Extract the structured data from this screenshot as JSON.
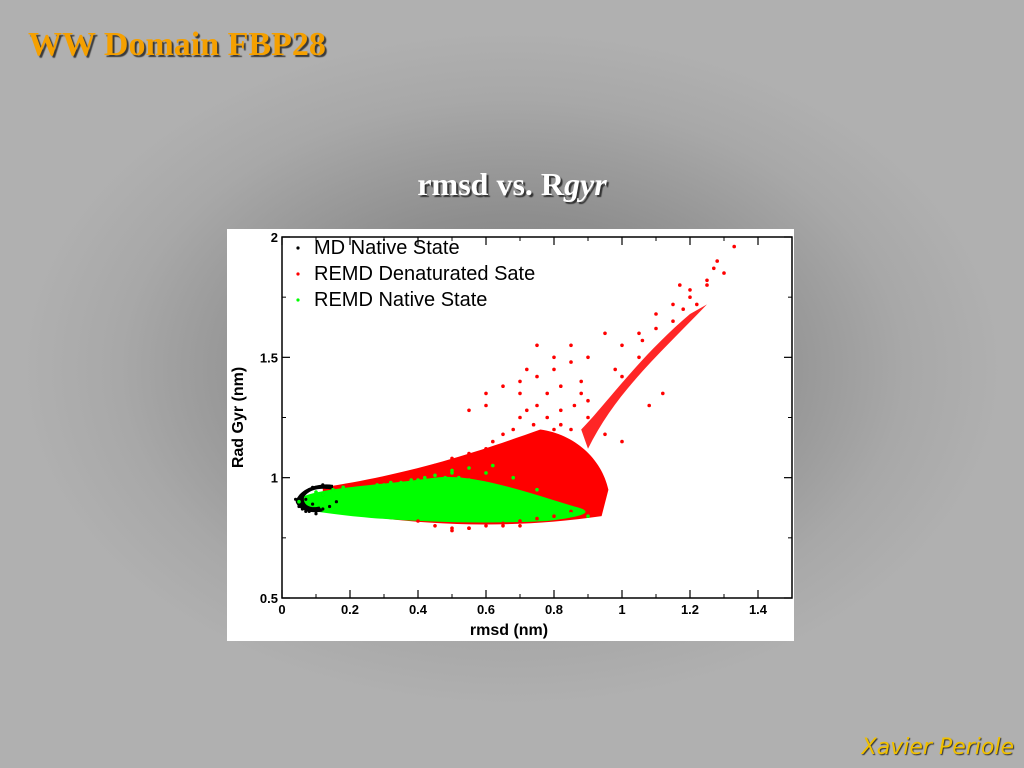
{
  "slide": {
    "title": "WW Domain FBP28",
    "heading_prefix": "rmsd vs. R",
    "heading_italic": "gyr",
    "author": "Xavier Periole"
  },
  "colors": {
    "title": "#f5a000",
    "author": "#f0c000",
    "md_native": "#000000",
    "remd_denatured": "#ff0000",
    "remd_native": "#00ff00"
  },
  "chart_data": {
    "type": "scatter",
    "title": "",
    "xlabel": "rmsd (nm)",
    "ylabel": "Rad Gyr (nm)",
    "xlim": [
      0,
      1.5
    ],
    "ylim": [
      0.5,
      2
    ],
    "xticks": [
      0,
      0.2,
      0.4,
      0.6,
      0.8,
      1,
      1.2,
      1.4
    ],
    "xtick_labels": [
      "0",
      "0.2",
      "0.4",
      "0.6",
      "0.8",
      "1",
      "1.2",
      "1.4"
    ],
    "yticks": [
      0.5,
      1,
      1.5,
      2
    ],
    "ytick_labels": [
      "0.5",
      "1",
      "1.5",
      "2"
    ],
    "grid": false,
    "legend_position": "top-left",
    "series": [
      {
        "name": "MD Native State",
        "color": "#000000",
        "x": [
          0.06,
          0.07,
          0.08,
          0.09,
          0.1,
          0.11,
          0.12,
          0.13,
          0.14,
          0.15,
          0.06,
          0.07,
          0.08,
          0.1,
          0.12,
          0.05,
          0.05,
          0.04,
          0.1,
          0.14,
          0.16,
          0.12,
          0.09,
          0.07
        ],
        "y": [
          0.92,
          0.94,
          0.95,
          0.96,
          0.96,
          0.96,
          0.97,
          0.96,
          0.96,
          0.95,
          0.87,
          0.86,
          0.86,
          0.86,
          0.87,
          0.9,
          0.88,
          0.91,
          0.85,
          0.88,
          0.9,
          0.93,
          0.89,
          0.91
        ]
      },
      {
        "name": "REMD Denaturated Sate",
        "color": "#ff0000",
        "x": [
          0.3,
          0.35,
          0.4,
          0.45,
          0.5,
          0.55,
          0.6,
          0.62,
          0.65,
          0.68,
          0.7,
          0.72,
          0.74,
          0.75,
          0.76,
          0.78,
          0.8,
          0.82,
          0.84,
          0.86,
          0.88,
          0.9,
          0.92,
          0.94,
          0.6,
          0.65,
          0.7,
          0.72,
          0.75,
          0.78,
          0.8,
          0.82,
          0.85,
          0.88,
          0.9,
          0.55,
          0.6,
          0.7,
          0.75,
          0.8,
          0.85,
          0.9,
          0.95,
          1.0,
          1.05,
          1.1,
          1.15,
          1.2,
          1.25,
          1.3,
          1.0,
          1.05,
          1.1,
          1.15,
          1.18,
          1.2,
          1.22,
          1.25,
          1.28,
          0.85,
          0.9,
          0.95,
          1.0,
          1.08,
          1.12,
          0.5,
          0.55,
          0.65,
          0.7,
          0.4,
          0.45,
          0.5,
          0.55,
          0.6,
          0.65,
          0.7,
          0.75,
          0.8,
          0.85,
          0.9,
          0.93,
          0.62,
          0.68,
          0.73,
          0.77,
          0.81,
          0.87,
          0.92,
          0.82,
          1.33,
          1.27,
          1.17,
          1.06,
          0.98,
          0.88
        ],
        "y": [
          0.98,
          1.0,
          1.02,
          1.05,
          1.08,
          1.1,
          1.12,
          1.15,
          1.18,
          1.2,
          1.25,
          1.28,
          1.22,
          1.3,
          1.18,
          1.25,
          1.2,
          1.28,
          1.15,
          1.3,
          1.1,
          1.05,
          1.0,
          0.95,
          1.35,
          1.38,
          1.4,
          1.45,
          1.42,
          1.35,
          1.5,
          1.38,
          1.48,
          1.4,
          1.32,
          1.28,
          1.3,
          1.35,
          1.55,
          1.45,
          1.55,
          1.5,
          1.6,
          1.55,
          1.6,
          1.68,
          1.72,
          1.75,
          1.8,
          1.85,
          1.42,
          1.5,
          1.62,
          1.65,
          1.7,
          1.78,
          1.72,
          1.82,
          1.9,
          1.2,
          1.25,
          1.18,
          1.15,
          1.3,
          1.35,
          0.78,
          0.79,
          0.8,
          0.8,
          0.82,
          0.8,
          0.79,
          0.79,
          0.8,
          0.81,
          0.82,
          0.83,
          0.84,
          0.86,
          0.88,
          0.92,
          1.02,
          1.08,
          1.15,
          1.1,
          1.05,
          1.0,
          0.98,
          1.22,
          1.96,
          1.87,
          1.8,
          1.57,
          1.45,
          1.35
        ]
      },
      {
        "name": "REMD Native State",
        "color": "#00ff00",
        "x": [
          0.05,
          0.08,
          0.1,
          0.12,
          0.15,
          0.18,
          0.2,
          0.22,
          0.25,
          0.28,
          0.3,
          0.32,
          0.35,
          0.38,
          0.4,
          0.42,
          0.45,
          0.48,
          0.5,
          0.52,
          0.55,
          0.58,
          0.6,
          0.62,
          0.65,
          0.68,
          0.7,
          0.72,
          0.75,
          0.78,
          0.8,
          0.85,
          0.9,
          0.2,
          0.3,
          0.4,
          0.5,
          0.6,
          0.7,
          0.25,
          0.35,
          0.45,
          0.55,
          0.65,
          0.5,
          0.55,
          0.6,
          0.62,
          0.68,
          0.75
        ],
        "y": [
          0.9,
          0.92,
          0.94,
          0.93,
          0.95,
          0.96,
          0.95,
          0.94,
          0.96,
          0.97,
          0.97,
          0.98,
          0.98,
          0.99,
          0.99,
          1.0,
          1.01,
          1.0,
          1.02,
          1.0,
          0.99,
          0.98,
          0.97,
          0.96,
          0.95,
          0.93,
          0.92,
          0.9,
          0.88,
          0.87,
          0.86,
          0.85,
          0.84,
          0.86,
          0.85,
          0.84,
          0.84,
          0.84,
          0.84,
          0.9,
          0.92,
          0.91,
          0.9,
          0.88,
          1.03,
          1.04,
          1.02,
          1.05,
          1.0,
          0.95
        ]
      }
    ]
  }
}
